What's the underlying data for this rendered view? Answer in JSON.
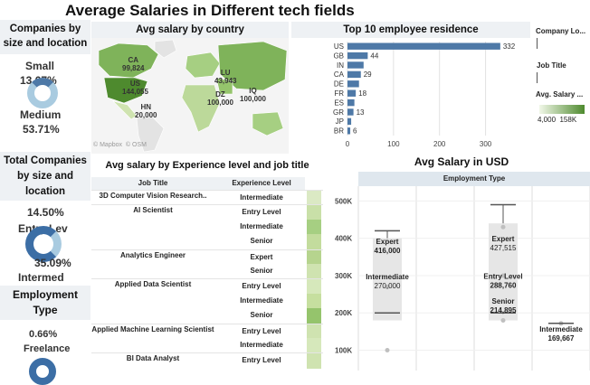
{
  "dashboard_title": "Average Salaries in Different tech fields",
  "left_panels": {
    "size_location": {
      "title": "Companies by size and location",
      "small_label": "Small",
      "small_pct": "13.67%",
      "medium_label": "Medium",
      "medium_pct": "53.71%"
    },
    "total_companies": {
      "title": "Total Companies by size and location",
      "pct1": "14.50%",
      "label1": "Entry Lev",
      "pct2": "35.09%",
      "label2": "Intermed"
    },
    "employment_type": {
      "title": "Employment Type",
      "pct": "0.66%",
      "label": "Freelance"
    }
  },
  "map": {
    "title": "Avg salary by country",
    "labels": [
      {
        "code": "CA",
        "value": "99,824"
      },
      {
        "code": "US",
        "value": "144,055"
      },
      {
        "code": "HN",
        "value": "20,000"
      },
      {
        "code": "LU",
        "value": "43,943"
      },
      {
        "code": "DZ",
        "value": "100,000"
      },
      {
        "code": "IQ",
        "value": "100,000"
      }
    ],
    "attribution": [
      "© Mapbox",
      "© OSM"
    ]
  },
  "top10": {
    "title": "Top 10 employee residence",
    "categories": [
      "US",
      "GB",
      "IN",
      "CA",
      "DE",
      "FR",
      "ES",
      "GR",
      "JP",
      "BR"
    ],
    "value_labels": [
      "332",
      "44",
      "",
      "29",
      "",
      "18",
      "",
      "13",
      "",
      "6"
    ],
    "ticks": [
      "0",
      "100",
      "200",
      "300"
    ]
  },
  "chart_data": {
    "type": "bar",
    "orientation": "horizontal",
    "title": "Top 10 employee residence",
    "categories": [
      "US",
      "GB",
      "IN",
      "CA",
      "DE",
      "FR",
      "ES",
      "GR",
      "JP",
      "BR"
    ],
    "values": [
      332,
      44,
      35,
      29,
      25,
      18,
      15,
      13,
      8,
      6
    ],
    "xlim": [
      0,
      350
    ],
    "xticks": [
      0,
      100,
      200,
      300
    ],
    "color": "#4e79a7"
  },
  "legend": {
    "company_location": "Company Lo...",
    "job_title": "Job Title",
    "avg_salary": "Avg. Salary ...",
    "range": "4,000  158K",
    "gradient_start": "#f1f7e8",
    "gradient_end": "#4e8a2e"
  },
  "experience_table": {
    "title": "Avg salary by Experience level and job title",
    "col_job": "Job Title",
    "col_exp": "Experience Level",
    "rows": [
      {
        "job": "3D Computer Vision Research..",
        "level": "Intermediate",
        "shade": "#dbe9c4"
      },
      {
        "job": "AI Scientist",
        "level": "Entry Level",
        "shade": "#c9e0a8"
      },
      {
        "job": "",
        "level": "Intermediate",
        "shade": "#a6cf82"
      },
      {
        "job": "",
        "level": "Senior",
        "shade": "#c3dc9d"
      },
      {
        "job": "Analytics Engineer",
        "level": "Expert",
        "shade": "#b6d48e"
      },
      {
        "job": "",
        "level": "Senior",
        "shade": "#cfe3b0"
      },
      {
        "job": "Applied Data Scientist",
        "level": "Entry Level",
        "shade": "#d6e8bb"
      },
      {
        "job": "",
        "level": "Intermediate",
        "shade": "#c6df9f"
      },
      {
        "job": "",
        "level": "Senior",
        "shade": "#95c46c"
      },
      {
        "job": "Applied Machine Learning Scientist",
        "level": "Entry Level",
        "shade": "#cfe3b0"
      },
      {
        "job": "",
        "level": "Intermediate",
        "shade": "#d6e8bb"
      },
      {
        "job": "BI Data Analyst",
        "level": "Entry Level",
        "shade": "#cfe3b0"
      }
    ]
  },
  "salary_usd": {
    "title": "Avg Salary in USD",
    "header": "Employment Type",
    "yticks": [
      "500K",
      "400K",
      "300K",
      "200K",
      "100K"
    ],
    "annotations": [
      {
        "level": "Expert",
        "value": "416,000"
      },
      {
        "level": "Intermediate",
        "value": "270,000"
      },
      {
        "level": "Expert",
        "value": "427,515"
      },
      {
        "level": "Entry Level",
        "value": "288,760"
      },
      {
        "level": "Senior",
        "value": "214,895"
      },
      {
        "level": "Intermediate",
        "value": "169,667"
      }
    ]
  }
}
